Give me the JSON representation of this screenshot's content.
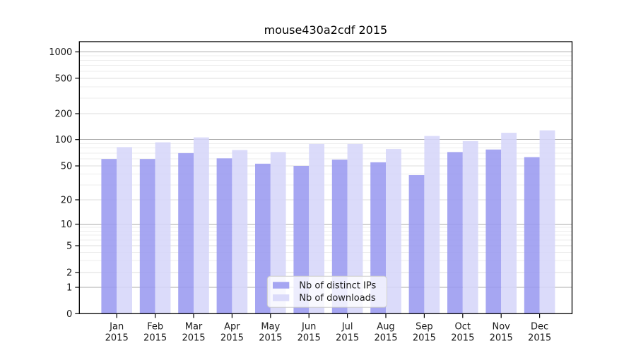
{
  "figure": {
    "background": "#ffffff"
  },
  "chart_data": {
    "type": "bar",
    "title": "mouse430a2cdf 2015",
    "categories": [
      "Jan 2015",
      "Feb 2015",
      "Mar 2015",
      "Apr 2015",
      "May 2015",
      "Jun 2015",
      "Jul 2015",
      "Aug 2015",
      "Sep 2015",
      "Oct 2015",
      "Nov 2015",
      "Dec 2015"
    ],
    "series": [
      {
        "name": "Nb of distinct IPs",
        "color": "#9a9af0",
        "values": [
          60,
          60,
          70,
          61,
          53,
          50,
          59,
          55,
          39,
          72,
          77,
          63
        ]
      },
      {
        "name": "Nb of downloads",
        "color": "#d6d6f9",
        "values": [
          82,
          93,
          106,
          76,
          72,
          89,
          89,
          78,
          110,
          96,
          120,
          128
        ]
      }
    ],
    "xlabel": "",
    "ylabel": "",
    "yscale": "symlog",
    "yticks": [
      0,
      1,
      2,
      5,
      10,
      20,
      50,
      100,
      200,
      500,
      1000
    ],
    "ylim": [
      0,
      1300
    ],
    "grid": true,
    "legend": {
      "labels": [
        "Nb of distinct IPs",
        "Nb of downloads"
      ],
      "position": "lower center"
    }
  },
  "colors": {
    "grid_major": "#ababab",
    "grid_mid": "#dcdcdc",
    "grid_minor": "#ececec",
    "spine": "#000000",
    "text": "#1a1a1a",
    "legend_border": "#cccccc",
    "legend_bg": "rgba(255,255,255,0.8)"
  }
}
